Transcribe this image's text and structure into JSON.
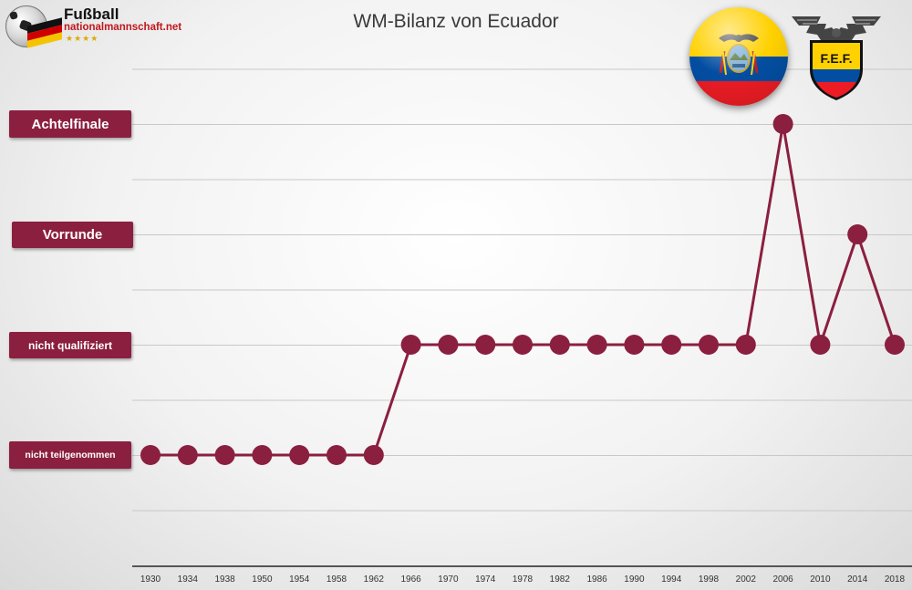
{
  "branding": {
    "line1": "Fußball",
    "line2": "nationalmannschaft.net",
    "stars": "★★★★",
    "flag_colors": [
      "#111111",
      "#d10000",
      "#f5c400"
    ]
  },
  "ecuador_flag": {
    "colors": [
      "#ffd100",
      "#034ea2",
      "#ed1c24"
    ]
  },
  "fef_badge": {
    "text": "F.E.F.",
    "colors": [
      "#ffd100",
      "#034ea2",
      "#ed1c24"
    ]
  },
  "chart_data": {
    "type": "line",
    "title": "WM-Bilanz von Ecuador",
    "x": [
      1930,
      1934,
      1938,
      1950,
      1954,
      1958,
      1962,
      1966,
      1970,
      1974,
      1978,
      1982,
      1986,
      1990,
      1994,
      1998,
      2002,
      2006,
      2010,
      2014,
      2018
    ],
    "categories": [
      "1930",
      "1934",
      "1938",
      "1950",
      "1954",
      "1958",
      "1962",
      "1966",
      "1970",
      "1974",
      "1978",
      "1982",
      "1986",
      "1990",
      "1994",
      "1998",
      "2002",
      "2006",
      "2010",
      "2014",
      "2018"
    ],
    "levels": [
      "nicht teilgenommen",
      "nicht qualifiziert",
      "Vorrunde",
      "Achtelfinale"
    ],
    "values": [
      0,
      0,
      0,
      0,
      0,
      0,
      0,
      1,
      1,
      1,
      1,
      1,
      1,
      1,
      1,
      1,
      1,
      3,
      1,
      2,
      1
    ],
    "series_color": "#8b1f3f",
    "grid": true,
    "xlabel": "",
    "ylabel": ""
  }
}
